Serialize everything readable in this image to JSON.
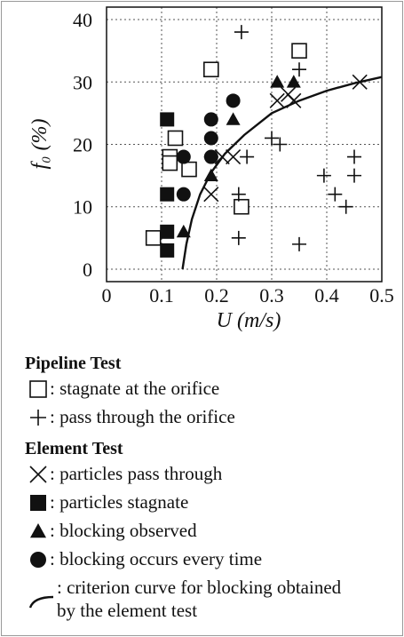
{
  "chart_data": {
    "type": "scatter",
    "xlabel": "U (m/s)",
    "ylabel": "f₀ (%)",
    "xlim": [
      0,
      0.5
    ],
    "xticks": [
      0,
      0.1,
      0.2,
      0.3,
      0.4,
      0.5
    ],
    "ylim": [
      -2,
      42
    ],
    "yticks": [
      0,
      10,
      20,
      30,
      40
    ],
    "grid": true,
    "legend_titles": [
      "Pipeline Test",
      "Element Test"
    ],
    "series": [
      {
        "name": ": stagnate at the orifice",
        "marker": "open-square",
        "color": "#111",
        "x": [
          0.085,
          0.125,
          0.115,
          0.115,
          0.15,
          0.19,
          0.245,
          0.35
        ],
        "values": [
          5,
          21,
          18,
          17,
          16,
          32,
          10,
          35
        ]
      },
      {
        "name": ": pass through the orifice",
        "marker": "plus",
        "color": "#111",
        "x": [
          0.245,
          0.19,
          0.24,
          0.24,
          0.255,
          0.3,
          0.315,
          0.35,
          0.35,
          0.395,
          0.415,
          0.435,
          0.45,
          0.45
        ],
        "values": [
          38,
          18,
          12,
          5,
          18,
          21,
          20,
          32,
          4,
          15,
          12,
          10,
          18,
          15
        ]
      },
      {
        "name": ": particles pass through",
        "marker": "x",
        "color": "#111",
        "x": [
          0.19,
          0.21,
          0.23,
          0.31,
          0.33,
          0.34,
          0.46
        ],
        "values": [
          12,
          18,
          18,
          27,
          28,
          27,
          30
        ]
      },
      {
        "name": ": particles stagnate",
        "marker": "square",
        "color": "#111",
        "x": [
          0.11,
          0.11,
          0.11,
          0.11
        ],
        "values": [
          24,
          12,
          6,
          3
        ]
      },
      {
        "name": ": blocking observed",
        "marker": "triangle",
        "color": "#111",
        "x": [
          0.14,
          0.19,
          0.23,
          0.31,
          0.34
        ],
        "values": [
          6,
          15,
          24,
          30,
          30
        ]
      },
      {
        "name": ": blocking occurs every time",
        "marker": "circle",
        "color": "#111",
        "x": [
          0.14,
          0.14,
          0.19,
          0.19,
          0.19,
          0.23
        ],
        "values": [
          18,
          12,
          24,
          21,
          18,
          27
        ]
      },
      {
        "name": ": criterion curve for blocking obtained by the element test",
        "marker": "line",
        "color": "#111",
        "x": [
          0.138,
          0.145,
          0.155,
          0.17,
          0.19,
          0.215,
          0.25,
          0.3,
          0.35,
          0.4,
          0.45,
          0.5
        ],
        "values": [
          0,
          4,
          8,
          12,
          15.5,
          18.5,
          21.5,
          25,
          27,
          28.6,
          29.8,
          30.8
        ]
      }
    ]
  }
}
